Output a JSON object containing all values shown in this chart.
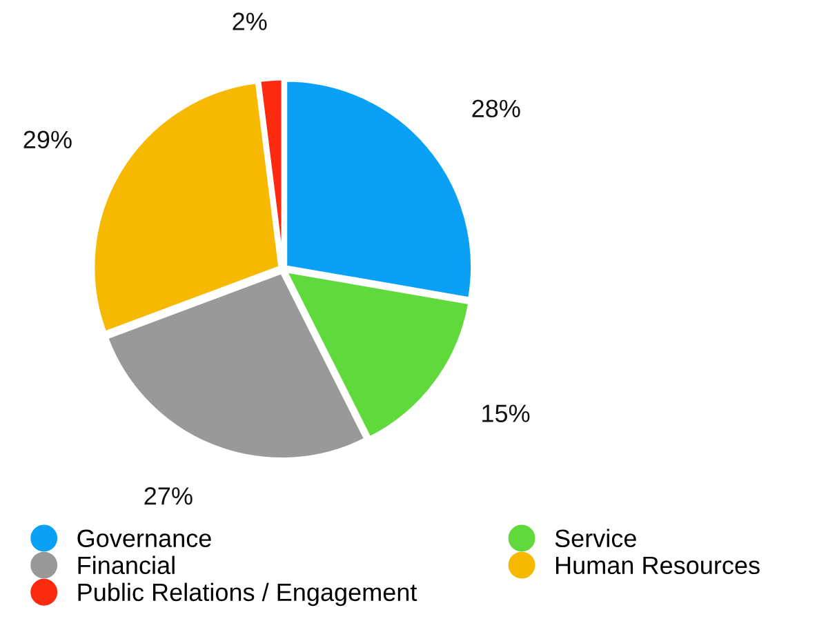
{
  "chart_data": {
    "type": "pie",
    "categories": [
      "Governance",
      "Service",
      "Financial",
      "Human Resources",
      "Public Relations / Engagement"
    ],
    "values": [
      28,
      15,
      27,
      29,
      2
    ],
    "colors": [
      "#0aa0f6",
      "#5fd93b",
      "#999999",
      "#f7b900",
      "#fc2a0f"
    ],
    "value_labels": [
      "28%",
      "15%",
      "27%",
      "29%",
      "2%"
    ],
    "legend": "bottom"
  }
}
